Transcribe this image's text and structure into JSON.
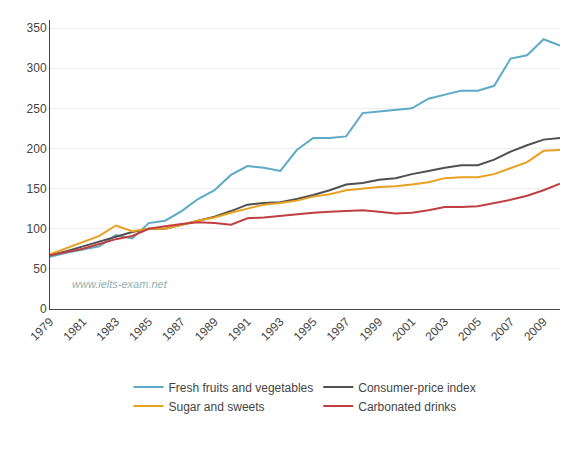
{
  "chart_data": {
    "type": "line",
    "x": [
      1979,
      1980,
      1981,
      1982,
      1983,
      1984,
      1985,
      1986,
      1987,
      1988,
      1989,
      1990,
      1991,
      1992,
      1993,
      1994,
      1995,
      1996,
      1997,
      1998,
      1999,
      2000,
      2001,
      2002,
      2003,
      2004,
      2005,
      2006,
      2007,
      2008,
      2009,
      2010
    ],
    "series": [
      {
        "name": "Fresh fruits and vegetables",
        "color": "#5da9c8",
        "values": [
          65,
          70,
          74,
          78,
          92,
          88,
          107,
          110,
          122,
          137,
          148,
          167,
          178,
          176,
          172,
          198,
          213,
          213,
          215,
          244,
          246,
          248,
          250,
          262,
          267,
          272,
          272,
          278,
          312,
          316,
          336,
          328
        ]
      },
      {
        "name": "Consumer-price index",
        "color": "#505050",
        "values": [
          67,
          72,
          78,
          84,
          90,
          96,
          100,
          100,
          105,
          110,
          115,
          122,
          130,
          132,
          133,
          137,
          142,
          148,
          155,
          157,
          161,
          163,
          168,
          172,
          176,
          179,
          179,
          186,
          196,
          204,
          211,
          213
        ]
      },
      {
        "name": "Sugar and sweets",
        "color": "#e8a020",
        "values": [
          68,
          76,
          84,
          91,
          104,
          97,
          100,
          100,
          105,
          110,
          114,
          120,
          125,
          130,
          132,
          135,
          140,
          143,
          148,
          150,
          152,
          153,
          155,
          158,
          163,
          164,
          164,
          168,
          176,
          183,
          197,
          198
        ]
      },
      {
        "name": "Carbonated drinks",
        "color": "#c04040",
        "values": [
          67,
          71,
          75,
          81,
          87,
          91,
          100,
          103,
          106,
          108,
          107,
          105,
          113,
          114,
          116,
          118,
          120,
          121,
          122,
          123,
          121,
          119,
          120,
          123,
          127,
          127,
          128,
          132,
          136,
          141,
          148,
          156
        ]
      }
    ],
    "xlim": [
      1979,
      2010
    ],
    "xticks": [
      1979,
      1981,
      1983,
      1985,
      1987,
      1989,
      1991,
      1993,
      1995,
      1997,
      1999,
      2001,
      2003,
      2005,
      2007,
      2009
    ],
    "ylim": [
      0,
      360
    ],
    "yticks": [
      0,
      50,
      100,
      150,
      200,
      250,
      300,
      350
    ],
    "grid": true,
    "legend": "bottom",
    "annotations": [
      "www.ielts-exam.net"
    ]
  }
}
